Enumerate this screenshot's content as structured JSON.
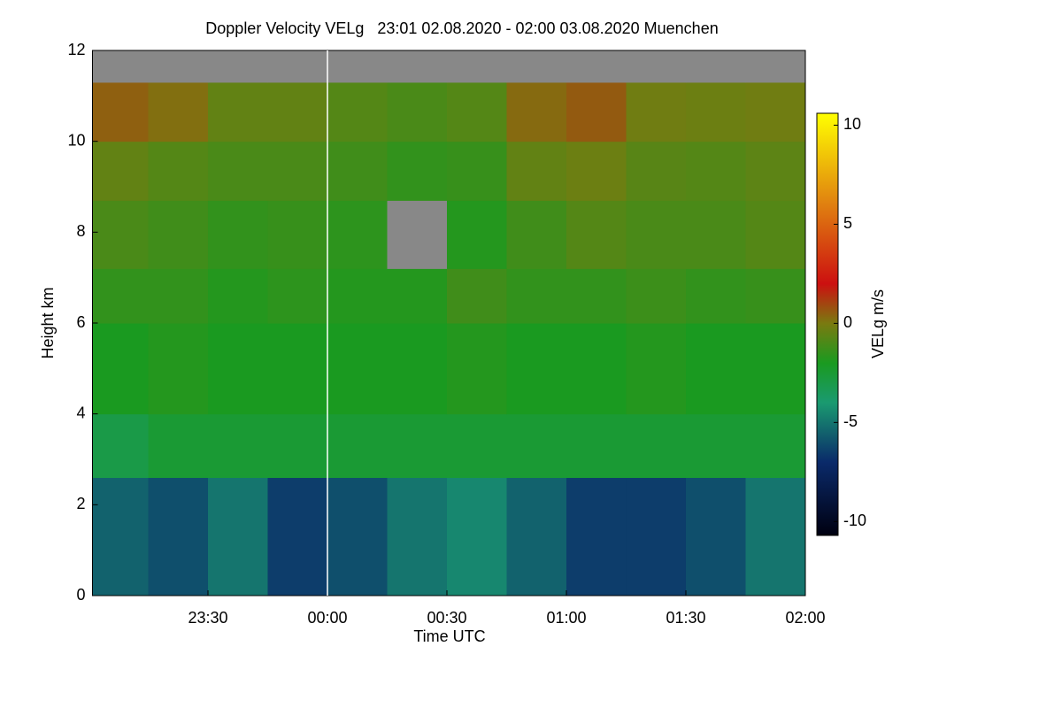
{
  "chart_data": {
    "type": "heatmap",
    "title": "Doppler Velocity VELg   23:01 02.08.2020 - 02:00 03.08.2020 Muenchen",
    "x_label": "Time UTC",
    "y_label": "Height km",
    "colorbar_label": "VELg m/s",
    "xlim": [
      23.0167,
      26.0
    ],
    "xticks": [
      {
        "value": 23.5,
        "label": "23:30"
      },
      {
        "value": 24.0,
        "label": "00:00"
      },
      {
        "value": 24.5,
        "label": "00:30"
      },
      {
        "value": 25.0,
        "label": "01:00"
      },
      {
        "value": 25.5,
        "label": "01:30"
      },
      {
        "value": 26.0,
        "label": "02:00"
      }
    ],
    "ylim": [
      0,
      12
    ],
    "yticks": [
      0,
      2,
      4,
      6,
      8,
      10,
      12
    ],
    "x_edges": [
      23.0167,
      23.25,
      23.5,
      23.75,
      24.0,
      24.25,
      24.5,
      24.75,
      25.0,
      25.25,
      25.5,
      25.75,
      26.0
    ],
    "y_edges": [
      0,
      2.6,
      4,
      6,
      7.2,
      8.7,
      10,
      11.3,
      12
    ],
    "z": [
      [
        -5.5,
        -6,
        -5,
        -6.5,
        -6,
        -5,
        -4.5,
        -5.5,
        -6.5,
        -6.5,
        -6,
        -5
      ],
      [
        -3,
        -2.5,
        -2.5,
        -2.5,
        -2.5,
        -2.5,
        -2.5,
        -2.5,
        -2.5,
        -2.5,
        -2.5,
        -2.5
      ],
      [
        -2,
        -1.8,
        -2,
        -2,
        -2,
        -2,
        -1.8,
        -2,
        -2,
        -1.8,
        -2,
        -2
      ],
      [
        -1.5,
        -1.5,
        -1.8,
        -1.6,
        -1.8,
        -1.8,
        -1.2,
        -1.5,
        -1.5,
        -1.3,
        -1.5,
        -1.4
      ],
      [
        -1,
        -1.2,
        -1.5,
        -1.4,
        -1.6,
        null,
        -1.8,
        -1.2,
        -0.8,
        -1,
        -1,
        -0.8
      ],
      [
        -0.5,
        -0.8,
        -1,
        -1,
        -1.2,
        -1.5,
        -1.4,
        -0.5,
        -0.3,
        -0.7,
        -0.8,
        -0.6
      ],
      [
        0.5,
        0.2,
        -0.5,
        -0.5,
        -0.8,
        -1,
        -0.8,
        0.3,
        0.6,
        -0.2,
        -0.3,
        -0.2
      ],
      [
        null,
        null,
        null,
        null,
        null,
        null,
        null,
        null,
        null,
        null,
        null,
        null
      ]
    ],
    "nodata_color": "#888888",
    "clim": [
      -10.7,
      10.6
    ],
    "cticks": [
      -10,
      -5,
      0,
      5,
      10
    ],
    "colorscale": [
      [
        -10.7,
        "#000010"
      ],
      [
        -7,
        "#0a2a6a"
      ],
      [
        -4,
        "#1a9a70"
      ],
      [
        -2,
        "#1a9a20"
      ],
      [
        0,
        "#7a7a10"
      ],
      [
        2,
        "#cc1010"
      ],
      [
        6,
        "#e08010"
      ],
      [
        10.6,
        "#ffff00"
      ]
    ]
  }
}
